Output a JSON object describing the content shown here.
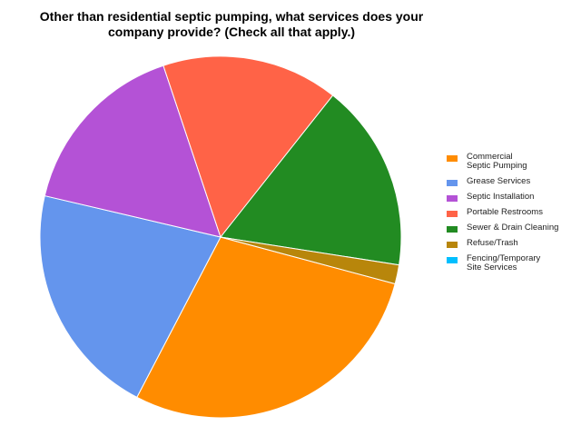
{
  "chart_data": {
    "type": "pie",
    "title": "Other than residential septic pumping, what services does your\ncompany provide? (Check all that apply.)",
    "legend_position": "right",
    "slices": [
      {
        "label": "Commercial\nSeptic Pumping",
        "value": 28.5,
        "color": "#FF8C00"
      },
      {
        "label": "Grease Services",
        "value": 21.0,
        "color": "#6495ED"
      },
      {
        "label": "Septic Installation",
        "value": 16.2,
        "color": "#B452D6"
      },
      {
        "label": "Portable Restrooms",
        "value": 15.8,
        "color": "#FF6347"
      },
      {
        "label": "Sewer & Drain Cleaning",
        "value": 16.8,
        "color": "#228B22"
      },
      {
        "label": "Refuse/Trash",
        "value": 1.7,
        "color": "#B8860B"
      },
      {
        "label": "Fencing/Temporary\nSite Services",
        "value": 0,
        "color": "#00BFFF"
      }
    ]
  }
}
